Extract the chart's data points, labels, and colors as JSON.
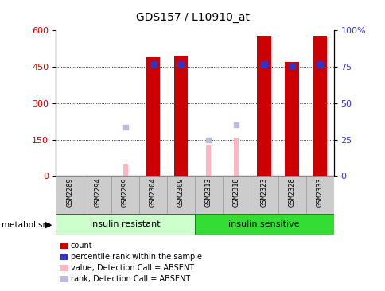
{
  "title": "GDS157 / L10910_at",
  "samples": [
    "GSM2289",
    "GSM2294",
    "GSM2299",
    "GSM2304",
    "GSM2309",
    "GSM2313",
    "GSM2318",
    "GSM2323",
    "GSM2328",
    "GSM2333"
  ],
  "group1_label": "insulin resistant",
  "group2_label": "insulin sensitive",
  "group1_count": 5,
  "group2_count": 5,
  "factor_label": "metabolism",
  "red_bars": [
    0,
    0,
    0,
    490,
    495,
    0,
    0,
    580,
    470,
    580
  ],
  "blue_squares_val": [
    null,
    null,
    null,
    460,
    462,
    null,
    null,
    462,
    455,
    462
  ],
  "pink_bars": [
    null,
    null,
    50,
    null,
    null,
    130,
    160,
    null,
    null,
    null
  ],
  "lightblue_squares_val": [
    null,
    null,
    200,
    null,
    null,
    148,
    210,
    null,
    null,
    null
  ],
  "ylim_left": [
    0,
    600
  ],
  "ylim_right": [
    0,
    100
  ],
  "yticks_left": [
    0,
    150,
    300,
    450,
    600
  ],
  "yticks_right": [
    0,
    25,
    50,
    75,
    100
  ],
  "ytick_labels_right": [
    "0",
    "25",
    "50",
    "75",
    "100%"
  ],
  "bar_width": 0.5,
  "red_color": "#CC0000",
  "blue_color": "#3333BB",
  "pink_color": "#FFB6C1",
  "lightblue_color": "#BBBBDD",
  "group_bg1": "#CCFFCC",
  "group_bg2": "#33DD33",
  "bg_color": "#FFFFFF",
  "plot_bg": "#FFFFFF",
  "tick_label_area_color": "#CCCCCC",
  "legend_items": [
    {
      "label": "count",
      "color": "#CC0000"
    },
    {
      "label": "percentile rank within the sample",
      "color": "#3333BB"
    },
    {
      "label": "value, Detection Call = ABSENT",
      "color": "#FFB6C1"
    },
    {
      "label": "rank, Detection Call = ABSENT",
      "color": "#BBBBDD"
    }
  ]
}
